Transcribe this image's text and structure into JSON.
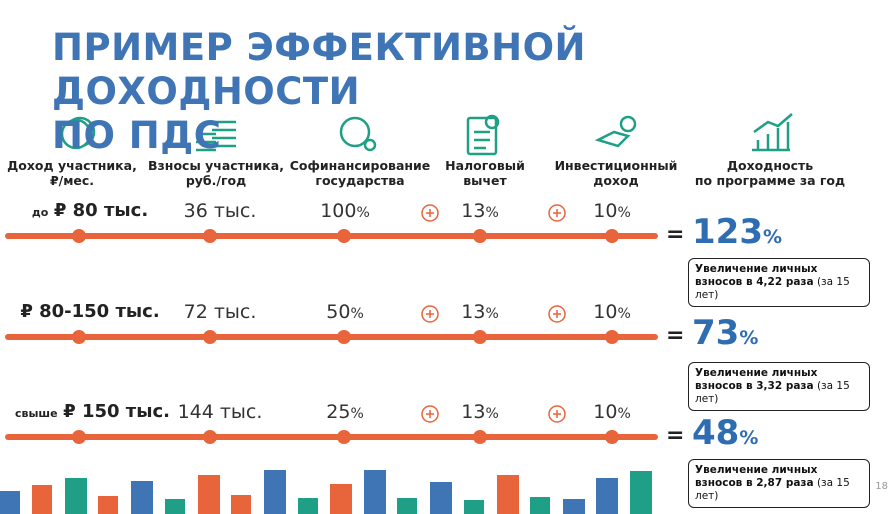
{
  "title": {
    "lines": [
      "ПРИМЕР ЭФФЕКТИВНОЙ ДОХОДНОСТИ",
      "ПО ПДС"
    ]
  },
  "headers": [
    {
      "lines": [
        "Доход участника,",
        "₽/мес."
      ]
    },
    {
      "lines": [
        "Взносы участника,",
        "руб./год"
      ]
    },
    {
      "lines": [
        "Софинансирование",
        "государства"
      ]
    },
    {
      "lines": [
        "Налоговый",
        "вычет"
      ]
    },
    {
      "lines": [
        "Инвестиционный",
        "доход"
      ]
    },
    {
      "lines": [
        "Доходность",
        "по программе за год"
      ]
    }
  ],
  "rows": [
    {
      "income": {
        "prefix": "до",
        "amount": "₽ 80 тыс."
      },
      "contribution": "36 тыс.",
      "cofinancing": {
        "number": "100",
        "unit": "%"
      },
      "tax": {
        "number": "13",
        "unit": "%"
      },
      "investment": {
        "number": "10",
        "unit": "%"
      },
      "result": {
        "number": "123",
        "unit": "%"
      },
      "note": {
        "bold": "Увеличение личных взносов в 4,22 раза",
        "extra": "(за 15 лет)"
      }
    },
    {
      "income": {
        "prefix": "",
        "amount": "₽ 80-150 тыс."
      },
      "contribution": "72 тыс.",
      "cofinancing": {
        "number": "50",
        "unit": "%"
      },
      "tax": {
        "number": "13",
        "unit": "%"
      },
      "investment": {
        "number": "10",
        "unit": "%"
      },
      "result": {
        "number": "73",
        "unit": "%"
      },
      "note": {
        "bold": "Увеличение личных взносов в 3,32 раза",
        "extra": "(за 15 лет)"
      }
    },
    {
      "income": {
        "prefix": "свыше",
        "amount": "₽ 150 тыс."
      },
      "contribution": "144 тыс.",
      "cofinancing": {
        "number": "25",
        "unit": "%"
      },
      "tax": {
        "number": "13",
        "unit": "%"
      },
      "investment": {
        "number": "10",
        "unit": "%"
      },
      "result": {
        "number": "48",
        "unit": "%"
      },
      "note": {
        "bold": "Увеличение личных взносов в 2,87 раза",
        "extra": "(за 15 лет)"
      }
    }
  ],
  "page_number": "18"
}
